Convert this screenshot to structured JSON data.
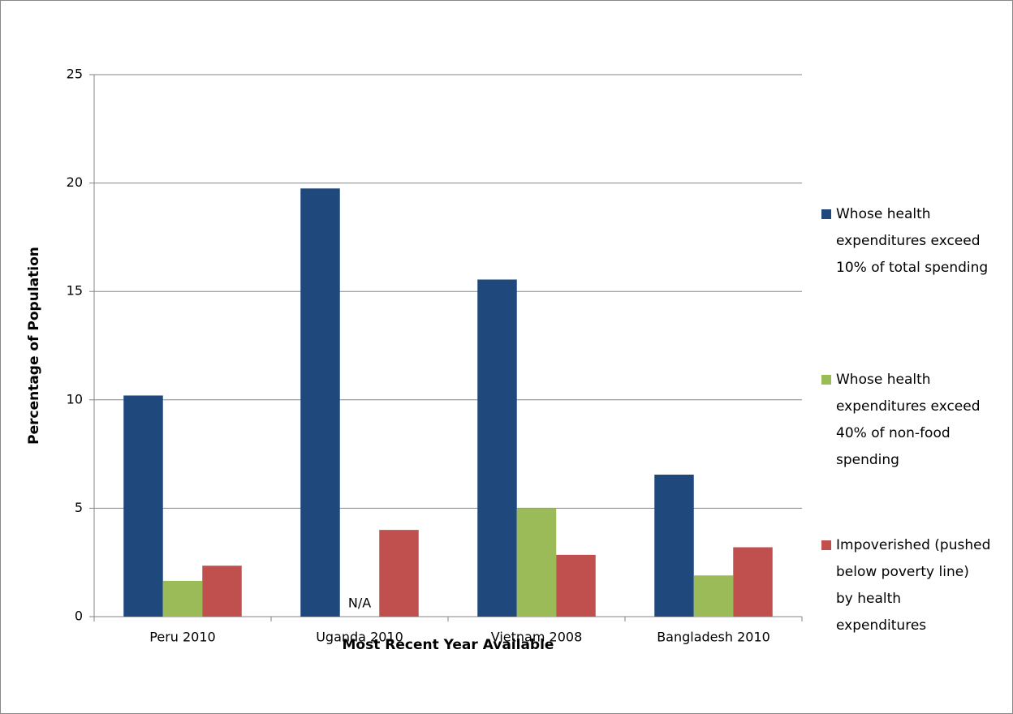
{
  "chart_data": {
    "type": "bar",
    "categories": [
      "Peru 2010",
      "Uganda 2010",
      "Vietnam 2008",
      "Bangladesh 2010"
    ],
    "series": [
      {
        "name": "Whose health expenditures exceed 10% of total spending",
        "color": "#1f497d",
        "values": [
          10.2,
          19.75,
          15.55,
          6.55
        ]
      },
      {
        "name": "Whose health expenditures exceed 40% of non-food spending",
        "color": "#9bbb59",
        "values": [
          1.65,
          null,
          5.0,
          1.9
        ],
        "value_labels": [
          null,
          "N/A",
          null,
          null
        ]
      },
      {
        "name": "Impoverished (pushed below poverty line) by health expenditures",
        "color": "#c0504d",
        "values": [
          2.35,
          4.0,
          2.85,
          3.2
        ]
      }
    ],
    "ylim": [
      0,
      25
    ],
    "yticks": [
      0,
      5,
      10,
      15,
      20,
      25
    ],
    "grid": true,
    "y_label": "Percentage of Population",
    "x_label": "Most Recent Year Available",
    "legend": "right"
  }
}
